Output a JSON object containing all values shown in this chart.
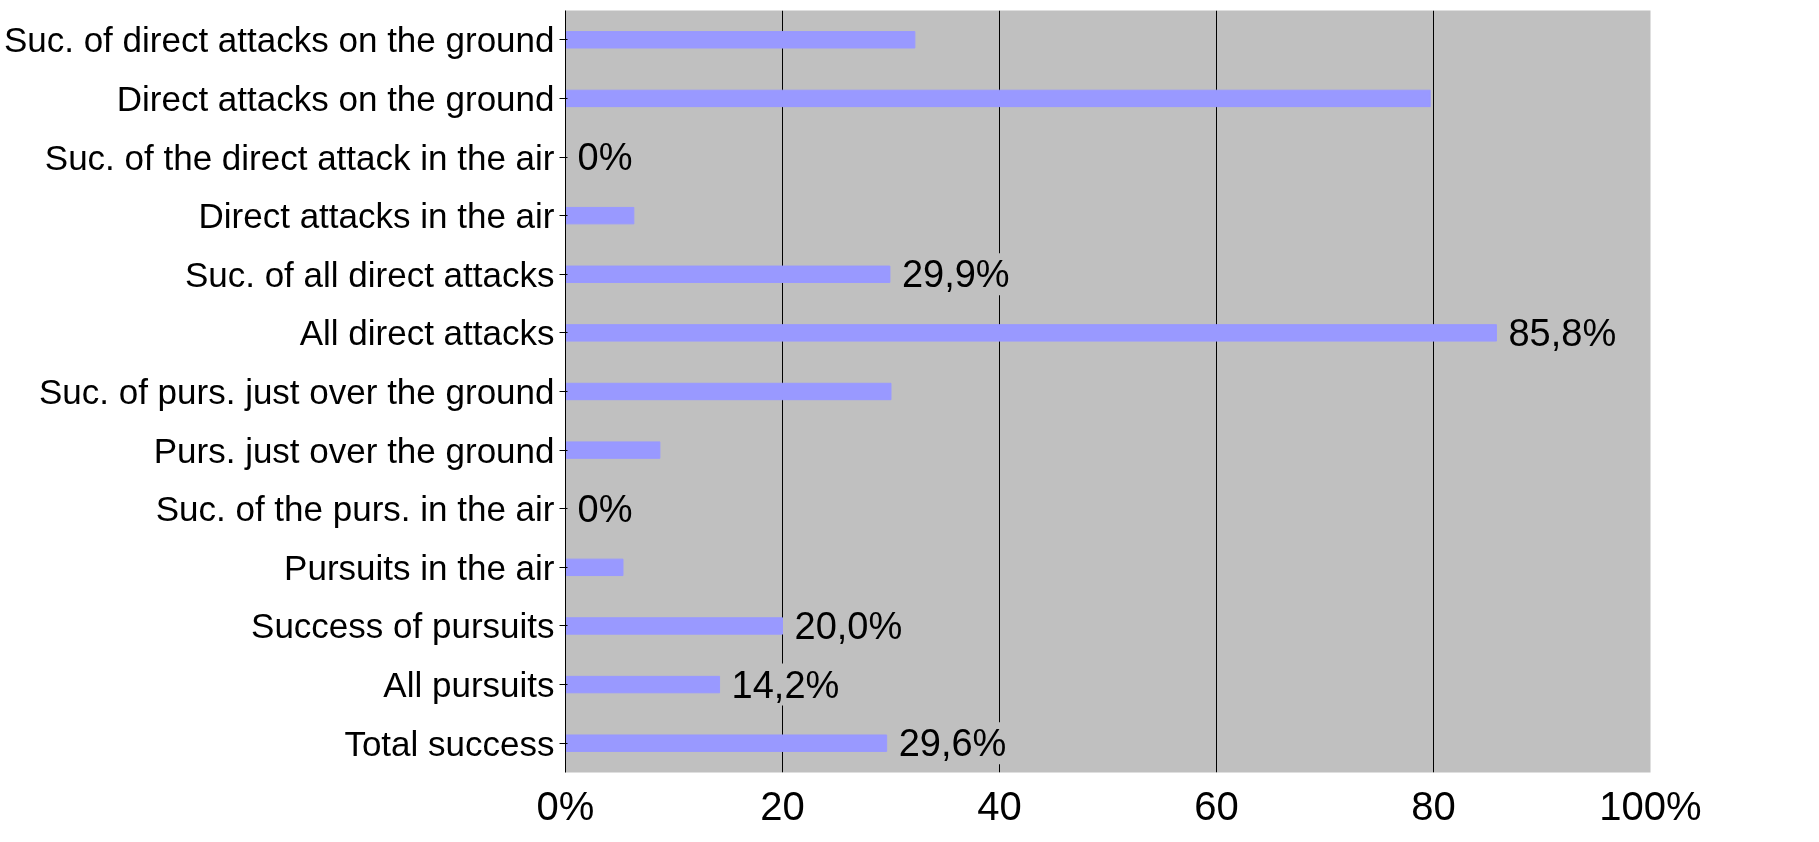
{
  "chart_data": {
    "type": "bar",
    "orientation": "horizontal",
    "categories": [
      "Suc. of direct attacks on the ground",
      "Direct attacks on the ground",
      "Suc. of the direct attack in the air",
      "Direct attacks in the air",
      "Suc. of all direct attacks",
      "All direct attacks",
      "Suc. of purs. just over the ground",
      "Purs. just over the ground",
      "Suc. of the purs. in the air",
      "Pursuits in the air",
      "Success of pursuits",
      "All pursuits",
      "Total success"
    ],
    "values": [
      32.2,
      79.7,
      0,
      6.3,
      29.9,
      85.8,
      30.0,
      8.7,
      0,
      5.3,
      20.0,
      14.2,
      29.6
    ],
    "value_labels": [
      null,
      null,
      "0%",
      null,
      "29,9%",
      "85,8%",
      null,
      null,
      "0%",
      null,
      "20,0%",
      "14,2%",
      "29,6%"
    ],
    "color": "#9999ff",
    "xlim": [
      0,
      100
    ],
    "xticks": [
      {
        "value": 0,
        "label": "0%"
      },
      20,
      40,
      60,
      80,
      {
        "value": 100,
        "label": "100%"
      }
    ],
    "grid": "x"
  }
}
